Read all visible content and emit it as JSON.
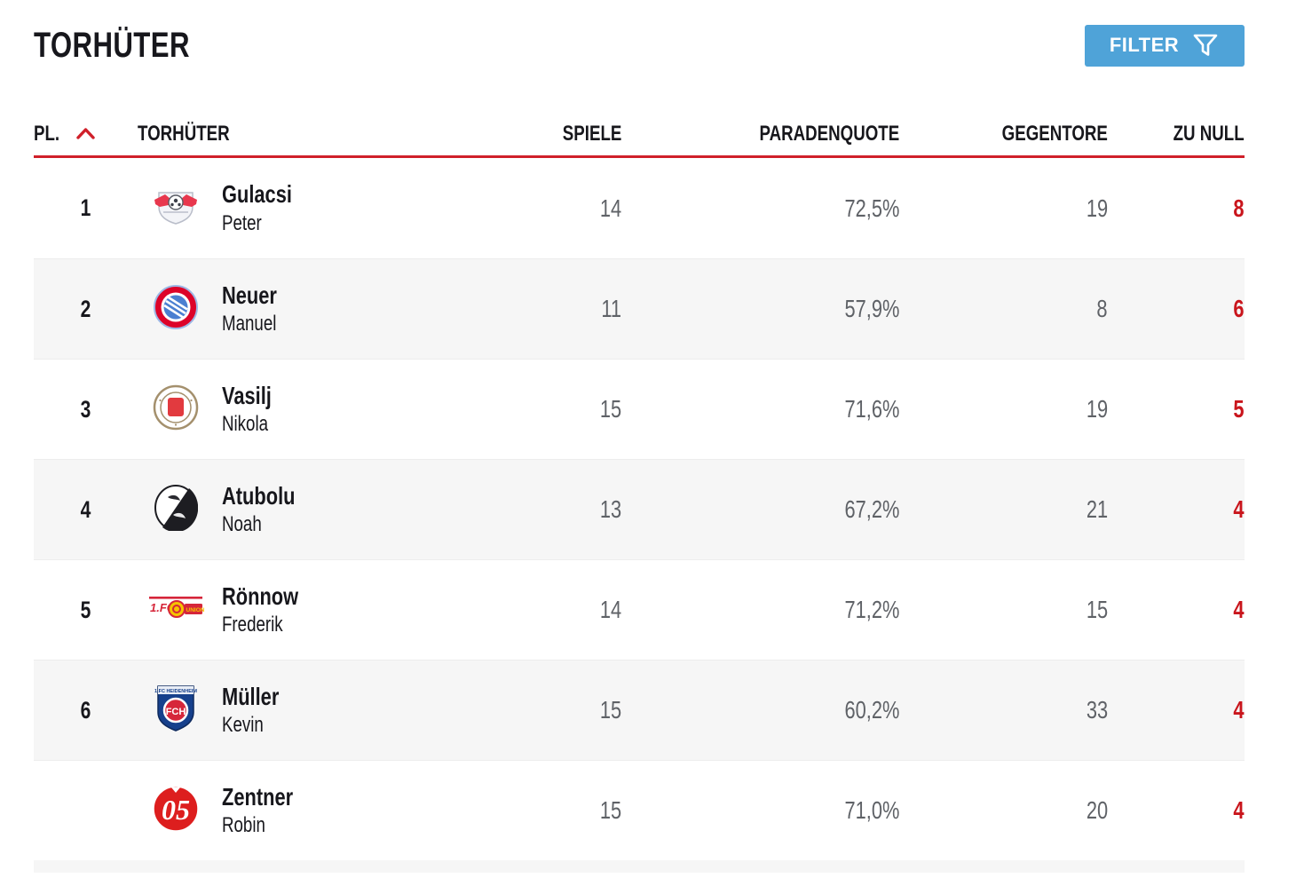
{
  "page": {
    "title": "TORHÜTER"
  },
  "toolbar": {
    "filter_label": "FILTER",
    "filter_icon": "funnel-icon"
  },
  "colors": {
    "accent_red": "#d0202a",
    "clean_sheet_red": "#c9151c",
    "filter_blue": "#4fa3d8",
    "value_gray": "#5f6267",
    "text_dark": "#17171c",
    "row_alt_bg": "#f6f6f6"
  },
  "table": {
    "sort": {
      "column": "pl",
      "direction": "asc",
      "icon": "chevron-up-icon"
    },
    "columns": [
      {
        "key": "pl",
        "label": "PL."
      },
      {
        "key": "torhueter",
        "label": "TORHÜTER"
      },
      {
        "key": "spiele",
        "label": "SPIELE"
      },
      {
        "key": "paradenquote",
        "label": "PARADENQUOTE"
      },
      {
        "key": "gegentore",
        "label": "GEGENTORE"
      },
      {
        "key": "zu_null",
        "label": "ZU NULL"
      }
    ],
    "rows": [
      {
        "pl": "1",
        "logo": "rb-leipzig-logo",
        "last_name": "Gulacsi",
        "first_name": "Peter",
        "spiele": "14",
        "paradenquote": "72,5%",
        "gegentore": "19",
        "zu_null": "8"
      },
      {
        "pl": "2",
        "logo": "bayern-muenchen-logo",
        "last_name": "Neuer",
        "first_name": "Manuel",
        "spiele": "11",
        "paradenquote": "57,9%",
        "gegentore": "8",
        "zu_null": "6"
      },
      {
        "pl": "3",
        "logo": "st-pauli-logo",
        "last_name": "Vasilj",
        "first_name": "Nikola",
        "spiele": "15",
        "paradenquote": "71,6%",
        "gegentore": "19",
        "zu_null": "5"
      },
      {
        "pl": "4",
        "logo": "sc-freiburg-logo",
        "last_name": "Atubolu",
        "first_name": "Noah",
        "spiele": "13",
        "paradenquote": "67,2%",
        "gegentore": "21",
        "zu_null": "4"
      },
      {
        "pl": "5",
        "logo": "union-berlin-logo",
        "last_name": "Rönnow",
        "first_name": "Frederik",
        "spiele": "14",
        "paradenquote": "71,2%",
        "gegentore": "15",
        "zu_null": "4"
      },
      {
        "pl": "6",
        "logo": "heidenheim-logo",
        "last_name": "Müller",
        "first_name": "Kevin",
        "spiele": "15",
        "paradenquote": "60,2%",
        "gegentore": "33",
        "zu_null": "4"
      },
      {
        "pl": "",
        "logo": "mainz-05-logo",
        "last_name": "Zentner",
        "first_name": "Robin",
        "spiele": "15",
        "paradenquote": "71,0%",
        "gegentore": "20",
        "zu_null": "4"
      }
    ]
  }
}
